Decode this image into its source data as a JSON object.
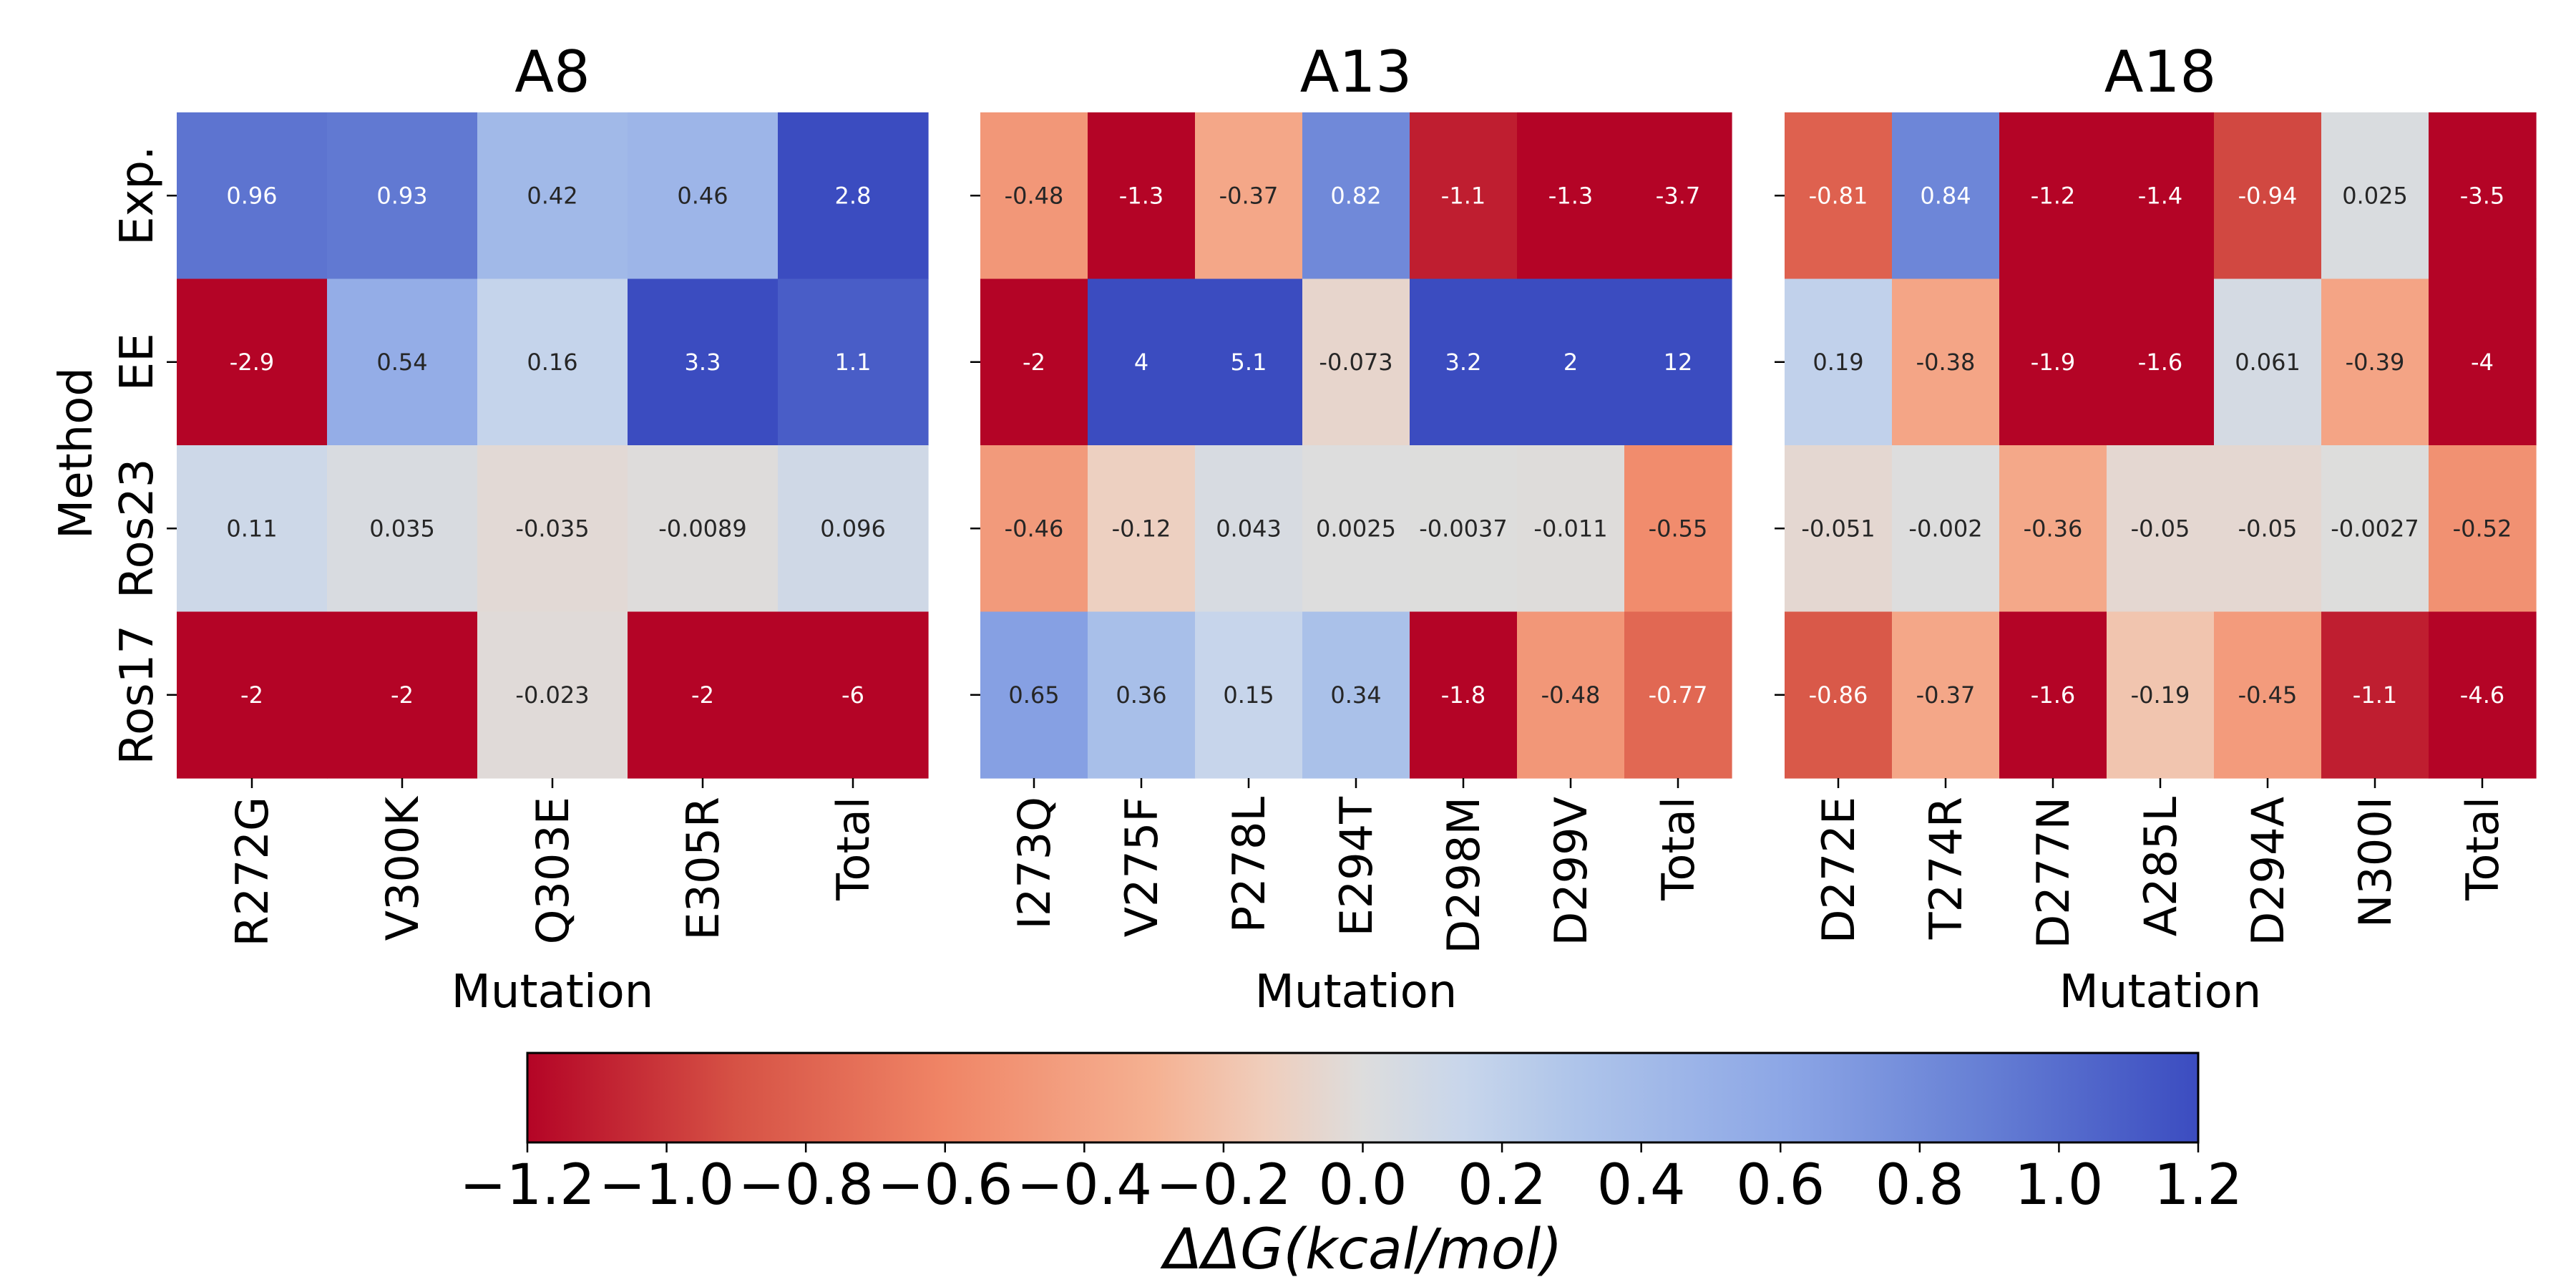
{
  "chart_data": {
    "type": "heatmap",
    "ylabel": "Method",
    "rows": [
      "Exp.",
      "EE",
      "Ros23",
      "Ros17"
    ],
    "panels": [
      {
        "title": "A8",
        "xlabel": "Mutation",
        "columns": [
          "R272G",
          "V300K",
          "Q303E",
          "E305R",
          "Total"
        ],
        "values": [
          [
            0.96,
            0.93,
            0.42,
            0.46,
            2.8
          ],
          [
            -2.9,
            0.54,
            0.16,
            3.3,
            1.1
          ],
          [
            0.11,
            0.035,
            -0.035,
            -0.0089,
            0.096
          ],
          [
            -2,
            -2,
            -0.023,
            -2,
            -6
          ]
        ],
        "labels": [
          [
            "0.96",
            "0.93",
            "0.42",
            "0.46",
            "2.8"
          ],
          [
            "-2.9",
            "0.54",
            "0.16",
            "3.3",
            "1.1"
          ],
          [
            "0.11",
            "0.035",
            "-0.035",
            "-0.0089",
            "0.096"
          ],
          [
            "-2",
            "-2",
            "-0.023",
            "-2",
            "-6"
          ]
        ]
      },
      {
        "title": "A13",
        "xlabel": "Mutation",
        "columns": [
          "I273Q",
          "V275F",
          "P278L",
          "E294T",
          "D298M",
          "D299V",
          "Total"
        ],
        "values": [
          [
            -0.48,
            -1.3,
            -0.37,
            0.82,
            -1.1,
            -1.3,
            -3.7
          ],
          [
            -2,
            4,
            5.1,
            -0.073,
            3.2,
            2,
            12
          ],
          [
            -0.46,
            -0.12,
            0.043,
            0.0025,
            -0.0037,
            -0.011,
            -0.55
          ],
          [
            0.65,
            0.36,
            0.15,
            0.34,
            -1.8,
            -0.48,
            -0.77
          ]
        ],
        "labels": [
          [
            "-0.48",
            "-1.3",
            "-0.37",
            "0.82",
            "-1.1",
            "-1.3",
            "-3.7"
          ],
          [
            "-2",
            "4",
            "5.1",
            "-0.073",
            "3.2",
            "2",
            "12"
          ],
          [
            "-0.46",
            "-0.12",
            "0.043",
            "0.0025",
            "-0.0037",
            "-0.011",
            "-0.55"
          ],
          [
            "0.65",
            "0.36",
            "0.15",
            "0.34",
            "-1.8",
            "-0.48",
            "-0.77"
          ]
        ]
      },
      {
        "title": "A18",
        "xlabel": "Mutation",
        "columns": [
          "D272E",
          "T274R",
          "D277N",
          "A285L",
          "D294A",
          "N300I",
          "Total"
        ],
        "values": [
          [
            -0.81,
            0.84,
            -1.2,
            -1.4,
            -0.94,
            0.025,
            -3.5
          ],
          [
            0.19,
            -0.38,
            -1.9,
            -1.6,
            0.061,
            -0.39,
            -4
          ],
          [
            -0.051,
            -0.002,
            -0.36,
            -0.05,
            -0.05,
            -0.0027,
            -0.52
          ],
          [
            -0.86,
            -0.37,
            -1.6,
            -0.19,
            -0.45,
            -1.1,
            -4.6
          ]
        ],
        "labels": [
          [
            "-0.81",
            "0.84",
            "-1.2",
            "-1.4",
            "-0.94",
            "0.025",
            "-3.5"
          ],
          [
            "0.19",
            "-0.38",
            "-1.9",
            "-1.6",
            "0.061",
            "-0.39",
            "-4"
          ],
          [
            "-0.051",
            "-0.002",
            "-0.36",
            "-0.05",
            "-0.05",
            "-0.0027",
            "-0.52"
          ],
          [
            "-0.86",
            "-0.37",
            "-1.6",
            "-0.19",
            "-0.45",
            "-1.1",
            "-4.6"
          ]
        ]
      }
    ],
    "colorbar": {
      "colormap": "coolwarm_r",
      "range": [
        -1.2,
        1.2
      ],
      "ticks": [
        "−1.2",
        "−1.0",
        "−0.8",
        "−0.6",
        "−0.4",
        "−0.2",
        "0.0",
        "0.2",
        "0.4",
        "0.6",
        "0.8",
        "1.0",
        "1.2"
      ],
      "tick_values": [
        -1.2,
        -1.0,
        -0.8,
        -0.6,
        -0.4,
        -0.2,
        0.0,
        0.2,
        0.4,
        0.6,
        0.8,
        1.0,
        1.2
      ],
      "label": "ΔΔG(kcal/mol)"
    },
    "colors": {
      "low": "#b40426",
      "mid": "#dddddd",
      "high": "#3b4cc0"
    }
  }
}
